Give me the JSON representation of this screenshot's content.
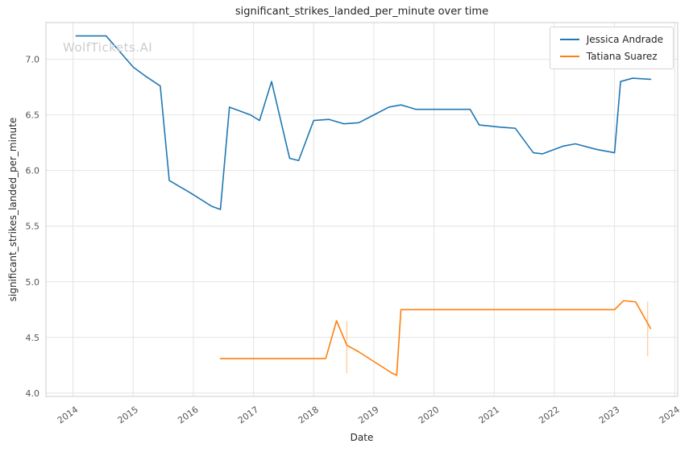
{
  "watermark": "WolfTickets.AI",
  "colors": {
    "background": "#ffffff",
    "grid": "#e4e4e4",
    "spine": "#cccccc",
    "tick_label": "#555555",
    "title": "#262626",
    "watermark": "#cccccc"
  },
  "chart_data": {
    "type": "line",
    "title": "significant_strikes_landed_per_minute over time",
    "xlabel": "Date",
    "ylabel": "significant_strikes_landed_per_minute",
    "grid": true,
    "legend_position": "upper right",
    "xlim": [
      2013.55,
      2024.05
    ],
    "ylim": [
      3.97,
      7.33
    ],
    "xticks": [
      2014,
      2015,
      2016,
      2017,
      2018,
      2019,
      2020,
      2021,
      2022,
      2023,
      2024
    ],
    "yticks": [
      4.0,
      4.5,
      5.0,
      5.5,
      6.0,
      6.5,
      7.0
    ],
    "series": [
      {
        "name": "Jessica Andrade",
        "color": "#1f77b4",
        "x": [
          2014.05,
          2014.55,
          2015.0,
          2015.2,
          2015.45,
          2015.6,
          2015.95,
          2016.3,
          2016.45,
          2016.6,
          2016.95,
          2017.1,
          2017.3,
          2017.6,
          2017.75,
          2018.0,
          2018.25,
          2018.5,
          2018.75,
          2019.0,
          2019.25,
          2019.45,
          2019.7,
          2020.3,
          2020.6,
          2020.75,
          2021.1,
          2021.35,
          2021.65,
          2021.8,
          2022.15,
          2022.35,
          2022.7,
          2023.0,
          2023.1,
          2023.3,
          2023.6
        ],
        "y": [
          7.21,
          7.21,
          6.93,
          6.85,
          6.76,
          5.91,
          5.8,
          5.68,
          5.65,
          6.57,
          6.5,
          6.45,
          6.8,
          6.11,
          6.09,
          6.45,
          6.46,
          6.42,
          6.43,
          6.5,
          6.57,
          6.59,
          6.55,
          6.55,
          6.55,
          6.41,
          6.39,
          6.38,
          6.16,
          6.15,
          6.22,
          6.24,
          6.19,
          6.16,
          6.8,
          6.83,
          6.82
        ]
      },
      {
        "name": "Tatiana Suarez",
        "color": "#ff7f0e",
        "x": [
          2016.45,
          2018.2,
          2018.38,
          2018.55,
          2018.75,
          2019.3,
          2019.38,
          2019.45,
          2023.0,
          2023.15,
          2023.35,
          2023.6
        ],
        "y": [
          4.31,
          4.31,
          4.65,
          4.43,
          4.37,
          4.18,
          4.16,
          4.75,
          4.75,
          4.83,
          4.82,
          4.58
        ]
      }
    ],
    "event_markers": [
      {
        "x": 2018.55,
        "y_bottom": 4.18,
        "y_top": 4.65,
        "color": "#ffd0a6"
      },
      {
        "x": 2023.55,
        "y_bottom": 4.33,
        "y_top": 4.82,
        "color": "#ffd0a6"
      }
    ]
  }
}
